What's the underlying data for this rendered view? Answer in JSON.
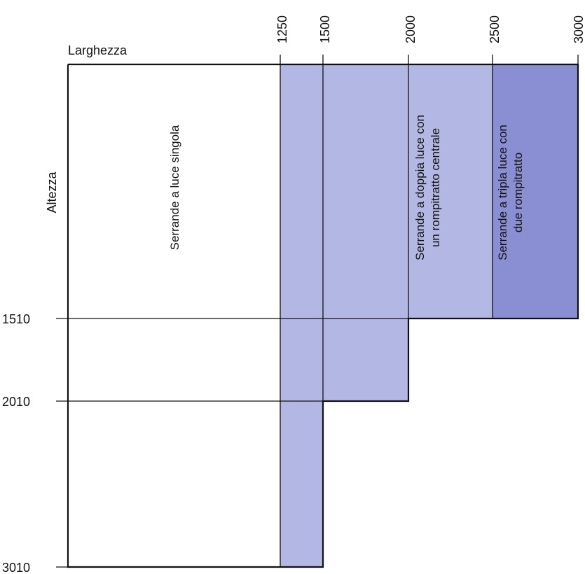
{
  "axes": {
    "width_title": "Larghezza",
    "height_title": "Altezza"
  },
  "width_ticks": [
    "1250",
    "1500",
    "2000",
    "2500",
    "3000"
  ],
  "height_ticks": [
    "1510",
    "2010",
    "3010"
  ],
  "regions": {
    "single": {
      "label": "Serrande a luce singola"
    },
    "double": {
      "label_line1": "Serrande a doppia luce con",
      "label_line2": "un rompitratto centrale"
    },
    "triple": {
      "label_line1": "Serrande a tripla luce con",
      "label_line2": "due rompitratto"
    }
  },
  "colors": {
    "fill_light": "#b3b7e3",
    "fill_dark": "#8a8ed3",
    "line": "#111111"
  }
}
